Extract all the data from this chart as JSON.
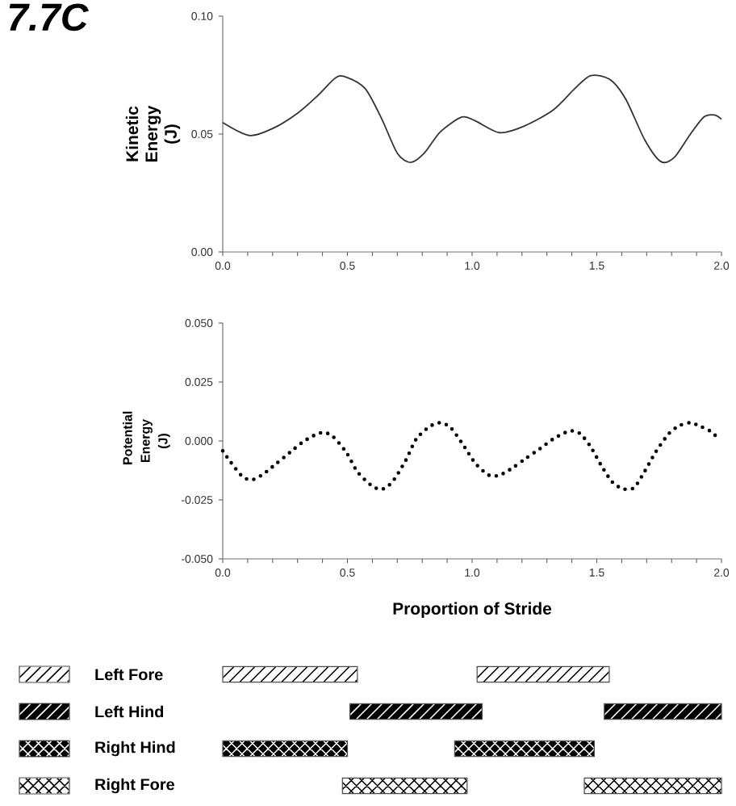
{
  "chart_data": [
    {
      "type": "line",
      "ylabel": "Kinetic Energy (J)",
      "annotations": [
        "7.7C"
      ],
      "x": [
        0,
        0.108,
        0.205,
        0.302,
        0.377,
        0.453,
        0.496,
        0.571,
        0.636,
        0.7,
        0.754,
        0.808,
        0.873,
        0.959,
        1.013,
        1.11,
        1.207,
        1.325,
        1.412,
        1.476,
        1.552,
        1.616,
        1.692,
        1.756,
        1.81,
        1.875,
        1.929,
        1.972,
        2.0
      ],
      "series": [
        {
          "color": "#333333",
          "values": [
            0.0549,
            0.0494,
            0.0526,
            0.059,
            0.0659,
            0.0739,
            0.0741,
            0.0693,
            0.0568,
            0.0419,
            0.038,
            0.0419,
            0.051,
            0.0572,
            0.0556,
            0.0506,
            0.0533,
            0.0602,
            0.0693,
            0.0748,
            0.0732,
            0.0648,
            0.0476,
            0.0384,
            0.04,
            0.0499,
            0.0572,
            0.0581,
            0.0563
          ]
        }
      ],
      "xlim": [
        0,
        2
      ],
      "ylim": [
        0,
        0.1
      ],
      "xticks": [
        {
          "value": 0,
          "label": "0.0"
        },
        {
          "value": 0.1,
          "label": null
        },
        {
          "value": 0.2,
          "label": null
        },
        {
          "value": 0.3,
          "label": null
        },
        {
          "value": 0.4,
          "label": null
        },
        {
          "value": 0.5,
          "label": "0.5"
        },
        {
          "value": 0.6,
          "label": null
        },
        {
          "value": 0.7,
          "label": null
        },
        {
          "value": 0.8,
          "label": null
        },
        {
          "value": 0.9,
          "label": null
        },
        {
          "value": 1,
          "label": "1.0"
        },
        {
          "value": 1.1,
          "label": null
        },
        {
          "value": 1.2,
          "label": null
        },
        {
          "value": 1.3,
          "label": null
        },
        {
          "value": 1.4,
          "label": null
        },
        {
          "value": 1.5,
          "label": "1.5"
        },
        {
          "value": 1.6,
          "label": null
        },
        {
          "value": 1.7,
          "label": null
        },
        {
          "value": 1.8,
          "label": null
        },
        {
          "value": 1.9,
          "label": null
        },
        {
          "value": 2,
          "label": "2.0"
        }
      ],
      "yticks": [
        {
          "value": 0,
          "label": "0.00"
        },
        {
          "value": 0.05,
          "label": "0.05"
        },
        {
          "value": 0.1,
          "label": "0.10"
        }
      ]
    },
    {
      "type": "line",
      "ylabel": "Potential Energy (J)",
      "xlabel": "Proportion of Stride",
      "line_style": "dotted",
      "x": [
        0,
        0.032,
        0.08,
        0.119,
        0.162,
        0.216,
        0.269,
        0.323,
        0.377,
        0.409,
        0.442,
        0.496,
        0.539,
        0.593,
        0.636,
        0.679,
        0.733,
        0.776,
        0.83,
        0.873,
        0.916,
        0.97,
        1.013,
        1.067,
        1.11,
        1.164,
        1.218,
        1.272,
        1.325,
        1.39,
        1.433,
        1.476,
        1.519,
        1.563,
        1.606,
        1.649,
        1.692,
        1.735,
        1.789,
        1.832,
        1.875,
        1.918,
        1.961,
        1.983
      ],
      "series": [
        {
          "color": "#000000",
          "values": [
            -0.0042,
            -0.009,
            -0.0152,
            -0.0164,
            -0.0141,
            -0.0095,
            -0.0049,
            -0.0003,
            0.0029,
            0.0035,
            0.0019,
            -0.0049,
            -0.0129,
            -0.0186,
            -0.0205,
            -0.0175,
            -0.0084,
            0.0008,
            0.0061,
            0.0077,
            0.0054,
            -0.0026,
            -0.0095,
            -0.0145,
            -0.0145,
            -0.0113,
            -0.0072,
            -0.0033,
            0.0008,
            0.0042,
            0.0031,
            -0.0026,
            -0.0106,
            -0.0175,
            -0.0203,
            -0.0198,
            -0.0129,
            -0.0049,
            0.0031,
            0.0065,
            0.0077,
            0.0061,
            0.0038,
            0.0013
          ]
        }
      ],
      "xlim": [
        0,
        2
      ],
      "ylim": [
        -0.05,
        0.05
      ],
      "xticks": [
        {
          "value": 0,
          "label": "0.0"
        },
        {
          "value": 0.1,
          "label": null
        },
        {
          "value": 0.2,
          "label": null
        },
        {
          "value": 0.3,
          "label": null
        },
        {
          "value": 0.4,
          "label": null
        },
        {
          "value": 0.5,
          "label": "0.5"
        },
        {
          "value": 0.6,
          "label": null
        },
        {
          "value": 0.7,
          "label": null
        },
        {
          "value": 0.8,
          "label": null
        },
        {
          "value": 0.9,
          "label": null
        },
        {
          "value": 1,
          "label": "1.0"
        },
        {
          "value": 1.1,
          "label": null
        },
        {
          "value": 1.2,
          "label": null
        },
        {
          "value": 1.3,
          "label": null
        },
        {
          "value": 1.4,
          "label": null
        },
        {
          "value": 1.5,
          "label": "1.5"
        },
        {
          "value": 1.6,
          "label": null
        },
        {
          "value": 1.7,
          "label": null
        },
        {
          "value": 1.8,
          "label": null
        },
        {
          "value": 1.9,
          "label": null
        },
        {
          "value": 2,
          "label": "2.0"
        }
      ],
      "yticks": [
        {
          "value": -0.05,
          "label": "-0.050"
        },
        {
          "value": -0.025,
          "label": "-0.025"
        },
        {
          "value": 0,
          "label": "0.000"
        },
        {
          "value": 0.025,
          "label": "0.025"
        },
        {
          "value": 0.05,
          "label": "0.050"
        }
      ]
    },
    {
      "type": "bar",
      "orientation": "horizontal",
      "tick_labels": "y",
      "categories": [
        "Left Fore",
        "Left Hind",
        "Right Hind",
        "Right Fore"
      ],
      "xlim": [
        0,
        2
      ],
      "series": [
        {
          "colors": [
            "#ffffff",
            "#000000",
            "#000000",
            "#ffffff"
          ],
          "base": [
            0.0,
            0.51,
            0.0,
            0.48
          ],
          "values": [
            0.54,
            0.53,
            0.5,
            0.5
          ]
        },
        {
          "colors": [
            "#ffffff",
            "#000000",
            "#000000",
            "#ffffff"
          ],
          "base": [
            1.02,
            1.53,
            0.93,
            1.45
          ],
          "values": [
            0.53,
            0.47,
            0.56,
            0.55
          ]
        }
      ]
    }
  ]
}
